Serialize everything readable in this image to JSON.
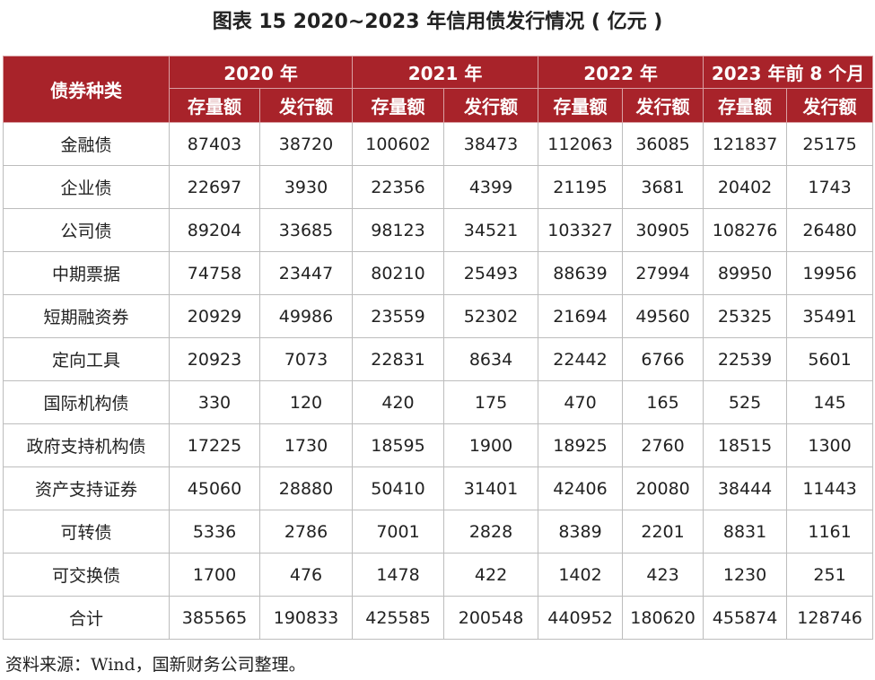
{
  "title": "图表 15   2020~2023 年信用债发行情况 ( 亿元 )",
  "table": {
    "corner_header": "债券种类",
    "year_headers": [
      "2020 年",
      "2021 年",
      "2022 年",
      "2023 年前 8 个月"
    ],
    "sub_headers": [
      "存量额",
      "发行额",
      "存量额",
      "发行额",
      "存量额",
      "发行额",
      "存量额",
      "发行额"
    ],
    "rows": [
      {
        "label": "金融债",
        "values": [
          "87403",
          "38720",
          "100602",
          "38473",
          "112063",
          "36085",
          "121837",
          "25175"
        ]
      },
      {
        "label": "企业债",
        "values": [
          "22697",
          "3930",
          "22356",
          "4399",
          "21195",
          "3681",
          "20402",
          "1743"
        ]
      },
      {
        "label": "公司债",
        "values": [
          "89204",
          "33685",
          "98123",
          "34521",
          "103327",
          "30905",
          "108276",
          "26480"
        ]
      },
      {
        "label": "中期票据",
        "values": [
          "74758",
          "23447",
          "80210",
          "25493",
          "88639",
          "27994",
          "89950",
          "19956"
        ]
      },
      {
        "label": "短期融资券",
        "values": [
          "20929",
          "49986",
          "23559",
          "52302",
          "21694",
          "49560",
          "25325",
          "35491"
        ]
      },
      {
        "label": "定向工具",
        "values": [
          "20923",
          "7073",
          "22831",
          "8634",
          "22442",
          "6766",
          "22539",
          "5601"
        ]
      },
      {
        "label": "国际机构债",
        "values": [
          "330",
          "120",
          "420",
          "175",
          "470",
          "165",
          "525",
          "145"
        ]
      },
      {
        "label": "政府支持机构债",
        "values": [
          "17225",
          "1730",
          "18595",
          "1900",
          "18925",
          "2760",
          "18515",
          "1300"
        ]
      },
      {
        "label": "资产支持证券",
        "values": [
          "45060",
          "28880",
          "50410",
          "31401",
          "42406",
          "20080",
          "38444",
          "11443"
        ]
      },
      {
        "label": "可转债",
        "values": [
          "5336",
          "2786",
          "7001",
          "2828",
          "8389",
          "2201",
          "8831",
          "1161"
        ]
      },
      {
        "label": "可交换债",
        "values": [
          "1700",
          "476",
          "1478",
          "422",
          "1402",
          "423",
          "1230",
          "251"
        ]
      },
      {
        "label": "合计",
        "values": [
          "385565",
          "190833",
          "425585",
          "200548",
          "440952",
          "180620",
          "455874",
          "128746"
        ]
      }
    ]
  },
  "source": "资料来源：Wind，国新财务公司整理。",
  "colors": {
    "header_bg": "#a8232a",
    "header_text": "#ffffff",
    "grid": "#bdbdbd"
  }
}
